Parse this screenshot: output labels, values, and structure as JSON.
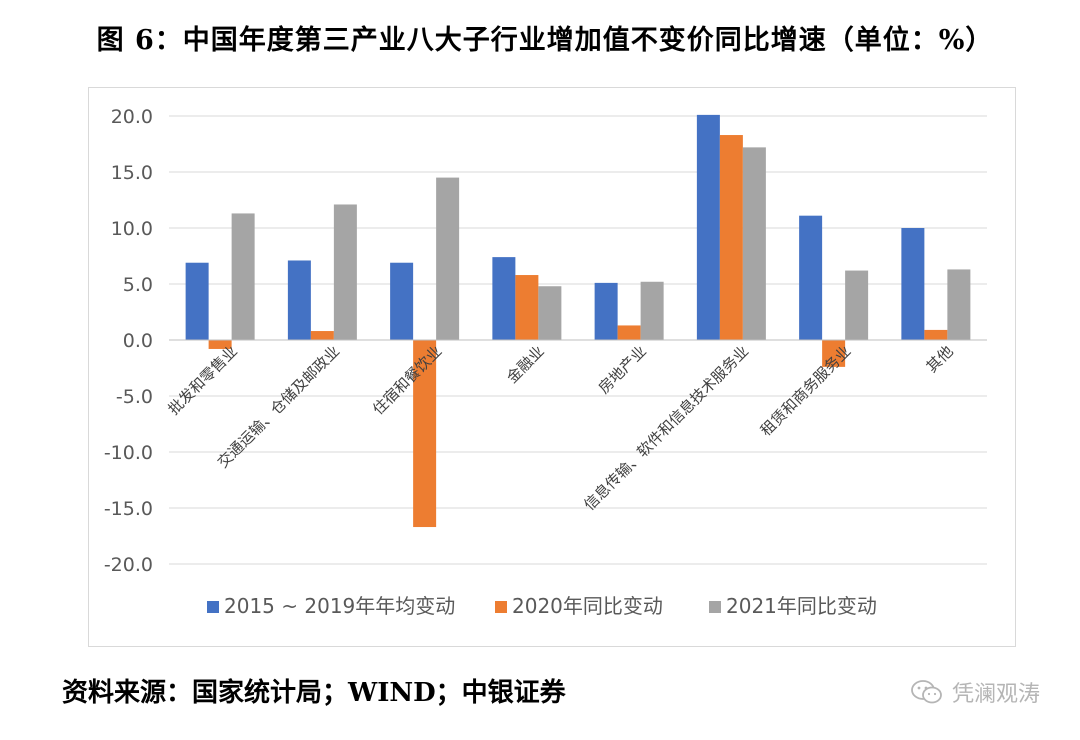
{
  "figure_title": "图 6：中国年度第三产业八大子行业增加值不变价同比增速（单位：%）",
  "source_note": "资料来源：国家统计局；WIND；中银证券",
  "watermark": {
    "text": "凭澜观涛",
    "icon": "wechat-icon"
  },
  "colors": {
    "series": [
      "#4472C4",
      "#ED7D31",
      "#A5A5A5"
    ],
    "grid": "#d9d9d9",
    "axis_text": "#595959"
  },
  "chart_data": {
    "type": "bar",
    "title": "",
    "xlabel": "",
    "ylabel": "",
    "ylim": [
      -20,
      20
    ],
    "yticks": [
      "20.0",
      "15.0",
      "10.0",
      "5.0",
      "0.0",
      "-5.0",
      "-10.0",
      "-15.0",
      "-20.0"
    ],
    "grid": true,
    "legend_position": "bottom",
    "categories": [
      "批发和零售业",
      "交通运输、仓储及邮政业",
      "住宿和餐饮业",
      "金融业",
      "房地产业",
      "信息传输、软件和信息技术服务业",
      "租赁和商务服务业",
      "其他"
    ],
    "series": [
      {
        "name": "2015 ~ 2019年年均变动",
        "values": [
          6.9,
          7.1,
          6.9,
          7.4,
          5.1,
          20.1,
          11.1,
          10.0
        ]
      },
      {
        "name": "2020年同比变动",
        "values": [
          -0.8,
          0.8,
          -16.7,
          5.8,
          1.3,
          18.3,
          -2.4,
          0.9
        ]
      },
      {
        "name": "2021年同比变动",
        "values": [
          11.3,
          12.1,
          14.5,
          4.8,
          5.2,
          17.2,
          6.2,
          6.3
        ]
      }
    ]
  }
}
